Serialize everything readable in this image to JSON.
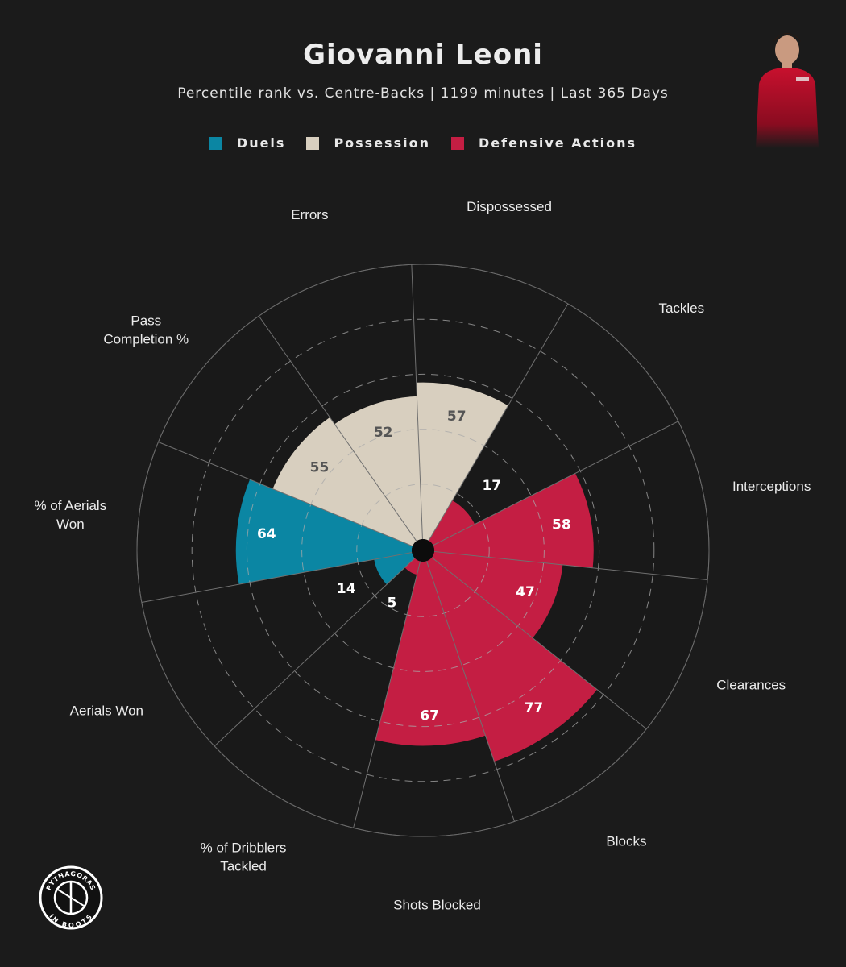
{
  "title": "Giovanni Leoni",
  "subtitle": "Percentile rank vs. Centre-Backs | 1199 minutes | Last 365 Days",
  "legend": [
    {
      "label": "Duels",
      "color": "#0b86a3"
    },
    {
      "label": "Possession",
      "color": "#d8cfbf"
    },
    {
      "label": "Defensive Actions",
      "color": "#c41e43"
    }
  ],
  "logo": {
    "text_top": "PYTHAGORAS",
    "text_bottom": "IN BOOTS"
  },
  "chart_data": {
    "type": "polar-bar",
    "title": "Giovanni Leoni",
    "rlim": [
      0,
      100
    ],
    "rings": [
      20,
      40,
      60,
      80,
      100
    ],
    "categories": [
      "Pass Completion %",
      "Errors",
      "Dispossessed",
      "Tackles",
      "Interceptions",
      "Clearances",
      "Blocks",
      "Shots Blocked",
      "% of Dribblers Tackled",
      "Aerials Won",
      "% of Aerials Won"
    ],
    "label_lines": [
      [
        "Pass",
        "Completion %"
      ],
      [
        "Errors"
      ],
      [
        "Dispossessed"
      ],
      [
        "Tackles"
      ],
      [
        "Interceptions"
      ],
      [
        "Clearances"
      ],
      [
        "Blocks"
      ],
      [
        "Shots Blocked"
      ],
      [
        "% of Dribblers",
        "Tackled"
      ],
      [
        "Aerials Won"
      ],
      [
        "% of Aerials",
        "Won"
      ]
    ],
    "values": [
      55,
      52,
      57,
      17,
      58,
      47,
      77,
      67,
      5,
      14,
      64
    ],
    "groups": [
      "Possession",
      "Possession",
      "Possession",
      "Defensive Actions",
      "Defensive Actions",
      "Defensive Actions",
      "Defensive Actions",
      "Defensive Actions",
      "Defensive Actions",
      "Duels",
      "Duels"
    ]
  }
}
